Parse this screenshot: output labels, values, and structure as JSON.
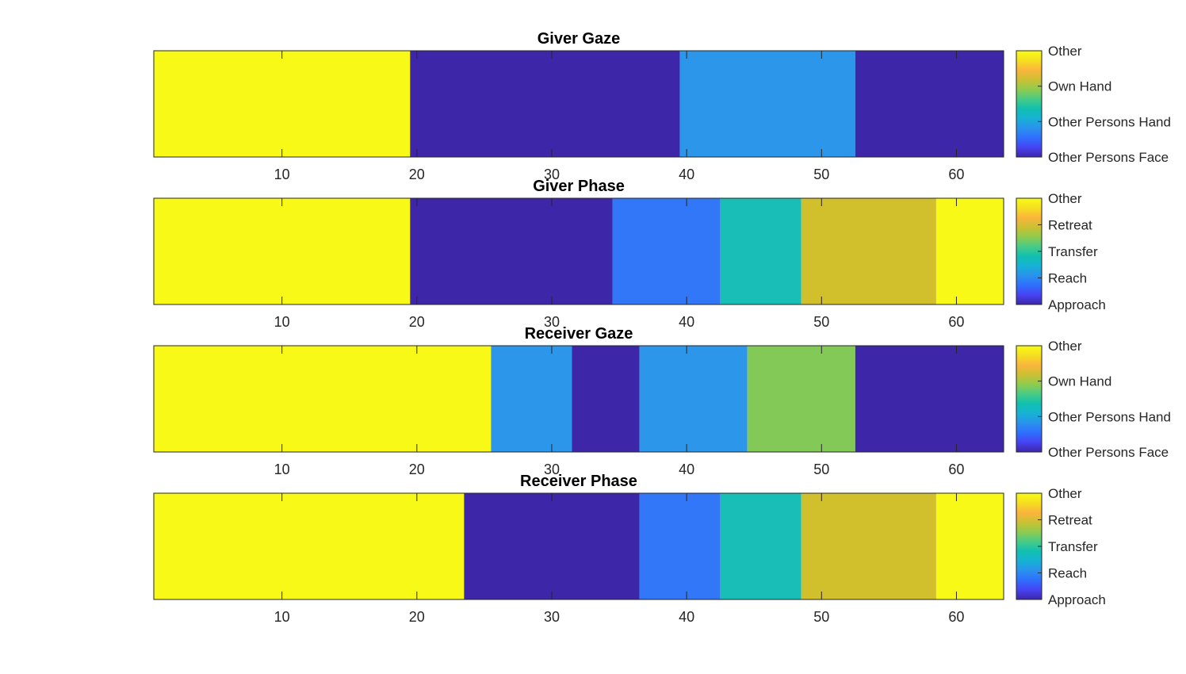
{
  "chart_data": [
    {
      "type": "heatmap",
      "title": "Giver Gaze",
      "xlim": [
        0.5,
        63.5
      ],
      "xticks": [
        10,
        20,
        30,
        40,
        50,
        60
      ],
      "segments": [
        {
          "start": 0.5,
          "end": 19.5,
          "value": 4,
          "color": "#f9f917"
        },
        {
          "start": 19.5,
          "end": 39.5,
          "value": 1,
          "color": "#3e26a8"
        },
        {
          "start": 39.5,
          "end": 52.5,
          "value": 2,
          "color": "#2c96ea"
        },
        {
          "start": 52.5,
          "end": 63.5,
          "value": 1,
          "color": "#3e26a8"
        }
      ],
      "colorbar": {
        "min": 1,
        "max": 4,
        "ticks": [
          {
            "value": 1,
            "label": "Other Persons Face"
          },
          {
            "value": 2,
            "label": "Other Persons Hand"
          },
          {
            "value": 3,
            "label": "Own Hand"
          },
          {
            "value": 4,
            "label": "Other"
          }
        ]
      }
    },
    {
      "type": "heatmap",
      "title": "Giver Phase",
      "xlim": [
        0.5,
        63.5
      ],
      "xticks": [
        10,
        20,
        30,
        40,
        50,
        60
      ],
      "segments": [
        {
          "start": 0.5,
          "end": 19.5,
          "value": 5,
          "color": "#f9f917"
        },
        {
          "start": 19.5,
          "end": 34.5,
          "value": 1,
          "color": "#3e26a8"
        },
        {
          "start": 34.5,
          "end": 42.5,
          "value": 2,
          "color": "#3177f7"
        },
        {
          "start": 42.5,
          "end": 48.5,
          "value": 3,
          "color": "#19bfb7"
        },
        {
          "start": 48.5,
          "end": 58.5,
          "value": 4.6,
          "color": "#d2bf2c"
        },
        {
          "start": 58.5,
          "end": 63.5,
          "value": 5,
          "color": "#f9f917"
        }
      ],
      "colorbar": {
        "min": 1,
        "max": 5,
        "ticks": [
          {
            "value": 1,
            "label": "Approach"
          },
          {
            "value": 2,
            "label": "Reach"
          },
          {
            "value": 3,
            "label": "Transfer"
          },
          {
            "value": 4,
            "label": "Retreat"
          },
          {
            "value": 5,
            "label": "Other"
          }
        ]
      }
    },
    {
      "type": "heatmap",
      "title": "Receiver Gaze",
      "xlim": [
        0.5,
        63.5
      ],
      "xticks": [
        10,
        20,
        30,
        40,
        50,
        60
      ],
      "segments": [
        {
          "start": 0.5,
          "end": 25.5,
          "value": 4,
          "color": "#f9f917"
        },
        {
          "start": 25.5,
          "end": 31.5,
          "value": 2,
          "color": "#2c96ea"
        },
        {
          "start": 31.5,
          "end": 36.5,
          "value": 1,
          "color": "#3e26a8"
        },
        {
          "start": 36.5,
          "end": 44.5,
          "value": 2,
          "color": "#2c96ea"
        },
        {
          "start": 44.5,
          "end": 52.5,
          "value": 3,
          "color": "#82c957"
        },
        {
          "start": 52.5,
          "end": 63.5,
          "value": 1,
          "color": "#3e26a8"
        }
      ],
      "colorbar": {
        "min": 1,
        "max": 4,
        "ticks": [
          {
            "value": 1,
            "label": "Other Persons Face"
          },
          {
            "value": 2,
            "label": "Other Persons Hand"
          },
          {
            "value": 3,
            "label": "Own Hand"
          },
          {
            "value": 4,
            "label": "Other"
          }
        ]
      }
    },
    {
      "type": "heatmap",
      "title": "Receiver Phase",
      "xlim": [
        0.5,
        63.5
      ],
      "xticks": [
        10,
        20,
        30,
        40,
        50,
        60
      ],
      "segments": [
        {
          "start": 0.5,
          "end": 23.5,
          "value": 5,
          "color": "#f9f917"
        },
        {
          "start": 23.5,
          "end": 36.5,
          "value": 1,
          "color": "#3e26a8"
        },
        {
          "start": 36.5,
          "end": 42.5,
          "value": 2,
          "color": "#3177f7"
        },
        {
          "start": 42.5,
          "end": 48.5,
          "value": 3,
          "color": "#19bfb7"
        },
        {
          "start": 48.5,
          "end": 58.5,
          "value": 4.6,
          "color": "#d2bf2c"
        },
        {
          "start": 58.5,
          "end": 63.5,
          "value": 5,
          "color": "#f9f917"
        }
      ],
      "colorbar": {
        "min": 1,
        "max": 5,
        "ticks": [
          {
            "value": 1,
            "label": "Approach"
          },
          {
            "value": 2,
            "label": "Reach"
          },
          {
            "value": 3,
            "label": "Transfer"
          },
          {
            "value": 4,
            "label": "Retreat"
          },
          {
            "value": 5,
            "label": "Other"
          }
        ]
      }
    }
  ],
  "colormap": [
    "#3e26a8",
    "#4743f3",
    "#2f6ffe",
    "#2a92ec",
    "#16b2d5",
    "#11c0b0",
    "#48cb86",
    "#90cb4e",
    "#cbc033",
    "#fbb53c",
    "#f5df21",
    "#f9fb15"
  ]
}
